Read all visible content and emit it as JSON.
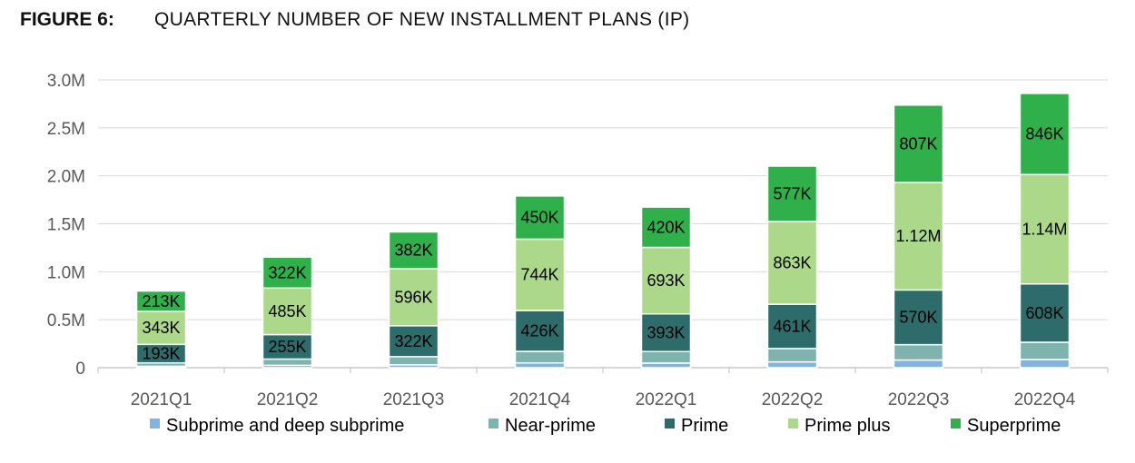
{
  "figure": {
    "label": "FIGURE 6:",
    "title": "QUARTERLY NUMBER OF NEW INSTALLMENT PLANS (IP)"
  },
  "chart_data": {
    "type": "bar",
    "stacked": true,
    "title": "QUARTERLY NUMBER OF NEW INSTALLMENT PLANS (IP)",
    "xlabel": "",
    "ylabel": "",
    "ylim": [
      0,
      3000000
    ],
    "y_ticks": [
      {
        "value": 0,
        "label": "0"
      },
      {
        "value": 500000,
        "label": "0.5M"
      },
      {
        "value": 1000000,
        "label": "1.0M"
      },
      {
        "value": 1500000,
        "label": "1.5M"
      },
      {
        "value": 2000000,
        "label": "2.0M"
      },
      {
        "value": 2500000,
        "label": "2.5M"
      },
      {
        "value": 3000000,
        "label": "3.0M"
      }
    ],
    "grid": true,
    "legend_position": "bottom",
    "categories": [
      "2021Q1",
      "2021Q2",
      "2021Q3",
      "2021Q4",
      "2022Q1",
      "2022Q2",
      "2022Q3",
      "2022Q4"
    ],
    "series": [
      {
        "name": "Subprime and deep subprime",
        "color": "#7fb4e3",
        "values": [
          15000,
          25000,
          30000,
          50000,
          48000,
          60000,
          80000,
          85000
        ],
        "labels": null
      },
      {
        "name": "Near-prime",
        "color": "#7fb3ad",
        "values": [
          35000,
          65000,
          85000,
          120000,
          120000,
          140000,
          160000,
          180000
        ],
        "labels": null
      },
      {
        "name": "Prime",
        "color": "#2e6b6b",
        "values": [
          193000,
          255000,
          322000,
          426000,
          393000,
          461000,
          570000,
          608000
        ],
        "labels": [
          "193K",
          "255K",
          "322K",
          "426K",
          "393K",
          "461K",
          "570K",
          "608K"
        ]
      },
      {
        "name": "Prime plus",
        "color": "#acd88a",
        "values": [
          343000,
          485000,
          596000,
          744000,
          693000,
          863000,
          1120000,
          1140000
        ],
        "labels": [
          "343K",
          "485K",
          "596K",
          "744K",
          "693K",
          "863K",
          "1.12M",
          "1.14M"
        ]
      },
      {
        "name": "Superprime",
        "color": "#2fb04a",
        "values": [
          213000,
          322000,
          382000,
          450000,
          420000,
          577000,
          807000,
          846000
        ],
        "labels": [
          "213K",
          "322K",
          "382K",
          "450K",
          "420K",
          "577K",
          "807K",
          "846K"
        ]
      }
    ]
  }
}
